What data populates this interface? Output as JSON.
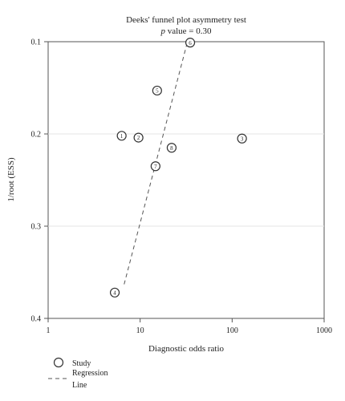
{
  "chart_data": {
    "type": "scatter",
    "title": "Deeks' funnel plot asymmetry test",
    "subtitle_italic": "p",
    "subtitle_rest": " value = 0.30",
    "xlabel": "Diagnostic odds ratio",
    "ylabel": "1/root (ESS)",
    "x_scale": "log",
    "xlim": [
      1,
      1000
    ],
    "ylim": [
      0.1,
      0.4
    ],
    "y_inverted": true,
    "x_ticks": [
      {
        "value": 1,
        "label": "1"
      },
      {
        "value": 10,
        "label": "10"
      },
      {
        "value": 100,
        "label": "100"
      },
      {
        "value": 1000,
        "label": "1000"
      }
    ],
    "y_ticks": [
      {
        "value": 0.1,
        "label": "0.1"
      },
      {
        "value": 0.2,
        "label": "0.2"
      },
      {
        "value": 0.3,
        "label": "0.3"
      },
      {
        "value": 0.4,
        "label": "0.4"
      }
    ],
    "grid": "horizontal",
    "points": [
      {
        "label": "1",
        "x": 6.3,
        "y": 0.202
      },
      {
        "label": "2",
        "x": 9.6,
        "y": 0.204
      },
      {
        "label": "3",
        "x": 128,
        "y": 0.205
      },
      {
        "label": "4",
        "x": 5.3,
        "y": 0.372
      },
      {
        "label": "5",
        "x": 15.3,
        "y": 0.153
      },
      {
        "label": "6",
        "x": 35,
        "y": 0.101
      },
      {
        "label": "7",
        "x": 14.7,
        "y": 0.235
      },
      {
        "label": "8",
        "x": 22,
        "y": 0.215
      }
    ],
    "regression_line": {
      "x": [
        6.7,
        32.5
      ],
      "y": [
        0.363,
        0.101
      ]
    },
    "legend": {
      "position": "bottom-left",
      "items": [
        {
          "symbol": "circle",
          "label": "Study"
        },
        {
          "symbol": "dashed-line",
          "label": "Regression Line"
        }
      ]
    }
  }
}
